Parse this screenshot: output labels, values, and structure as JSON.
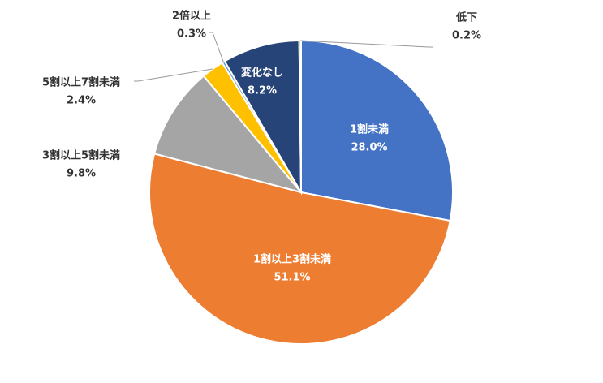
{
  "chart_data": {
    "type": "pie",
    "categories": [
      "1割未満",
      "1割以上3割未満",
      "3割以上5割未満",
      "5割以上7割未満",
      "2倍以上",
      "変化なし",
      "低下"
    ],
    "values": [
      28.0,
      51.1,
      9.8,
      2.4,
      0.3,
      8.2,
      0.2
    ],
    "value_labels": [
      "28.0%",
      "51.1%",
      "9.8%",
      "2.4%",
      "0.3%",
      "8.2%",
      "0.2%"
    ],
    "colors": [
      "#4472c4",
      "#ed7d31",
      "#a5a5a5",
      "#ffc000",
      "#5b9bd5",
      "#264478",
      "#70ad47"
    ]
  }
}
